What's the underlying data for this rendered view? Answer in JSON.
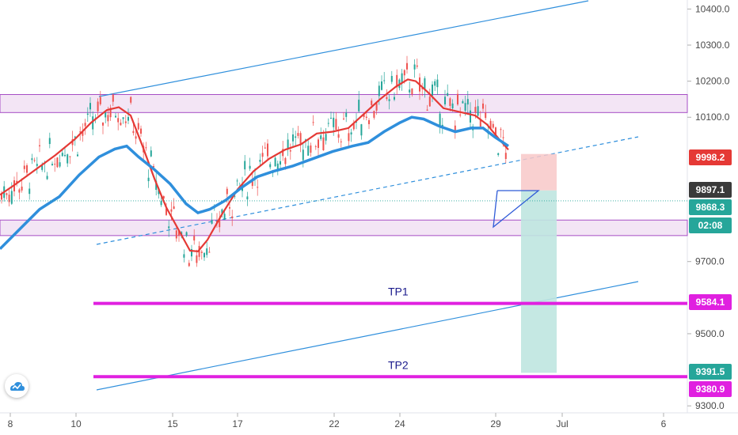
{
  "chart_data": {
    "type": "line",
    "symbol_interval": "candlestick price chart",
    "y_axis": {
      "ticks": [
        "10400.0",
        "10300.0",
        "10200.0",
        "10100.0",
        "9700.0",
        "9500.0",
        "9300.0"
      ],
      "ylim": [
        9285,
        10425
      ],
      "position": "right"
    },
    "x_axis": {
      "ticks": [
        "8",
        "10",
        "15",
        "17",
        "22",
        "24",
        "29",
        "Jul",
        "6"
      ]
    },
    "price_badges": [
      {
        "label": "9998.2",
        "color": "#e53935"
      },
      {
        "label": "9897.1",
        "color": "#3a3a3a"
      },
      {
        "label": "9868.3",
        "color": "#26a69a"
      },
      {
        "label": "02:08",
        "color": "#26a69a"
      },
      {
        "label": "9584.1",
        "color": "#e020e0"
      },
      {
        "label": "9391.5",
        "color": "#26a69a"
      },
      {
        "label": "9380.9",
        "color": "#e020e0"
      }
    ],
    "annotations": {
      "tp1_label": "TP1",
      "tp2_label": "TP2",
      "tp1_level": 9584.1,
      "tp2_level": 9380.9,
      "resistance_zone": [
        10113,
        10163
      ],
      "support_zone": [
        9772,
        9815
      ],
      "entry_level": 9897.1,
      "stop_level": 9998.2,
      "target_level": 9391.5,
      "current_price": 9868.3
    },
    "series": [
      {
        "color": "#e53935",
        "values": [
          [
            0,
            9885
          ],
          [
            20,
            9915
          ],
          [
            45,
            9955
          ],
          [
            70,
            9995
          ],
          [
            95,
            10040
          ],
          [
            115,
            10085
          ],
          [
            135,
            10120
          ],
          [
            150,
            10128
          ],
          [
            165,
            10105
          ],
          [
            180,
            10020
          ],
          [
            195,
            9930
          ],
          [
            210,
            9850
          ],
          [
            225,
            9790
          ],
          [
            240,
            9730
          ],
          [
            250,
            9728
          ],
          [
            262,
            9760
          ],
          [
            280,
            9830
          ],
          [
            300,
            9900
          ],
          [
            320,
            9950
          ],
          [
            340,
            9985
          ],
          [
            360,
            10010
          ],
          [
            380,
            10025
          ],
          [
            400,
            10055
          ],
          [
            420,
            10060
          ],
          [
            440,
            10070
          ],
          [
            460,
            10110
          ],
          [
            480,
            10150
          ],
          [
            500,
            10185
          ],
          [
            515,
            10205
          ],
          [
            525,
            10200
          ],
          [
            540,
            10170
          ],
          [
            560,
            10125
          ],
          [
            580,
            10115
          ],
          [
            600,
            10105
          ],
          [
            615,
            10080
          ],
          [
            630,
            10040
          ],
          [
            642,
            10010
          ]
        ]
      },
      {
        "color": "#2f8fdc",
        "values": [
          [
            0,
            9735
          ],
          [
            25,
            9790
          ],
          [
            50,
            9845
          ],
          [
            75,
            9880
          ],
          [
            100,
            9940
          ],
          [
            125,
            9990
          ],
          [
            145,
            10012
          ],
          [
            160,
            10020
          ],
          [
            175,
            9990
          ],
          [
            195,
            9955
          ],
          [
            215,
            9915
          ],
          [
            235,
            9860
          ],
          [
            250,
            9835
          ],
          [
            265,
            9845
          ],
          [
            285,
            9870
          ],
          [
            305,
            9905
          ],
          [
            325,
            9935
          ],
          [
            345,
            9950
          ],
          [
            370,
            9965
          ],
          [
            395,
            9985
          ],
          [
            420,
            10005
          ],
          [
            445,
            10020
          ],
          [
            465,
            10030
          ],
          [
            485,
            10060
          ],
          [
            505,
            10085
          ],
          [
            520,
            10100
          ],
          [
            535,
            10095
          ],
          [
            555,
            10075
          ],
          [
            575,
            10060
          ],
          [
            595,
            10070
          ],
          [
            610,
            10070
          ],
          [
            625,
            10045
          ],
          [
            642,
            10020
          ]
        ]
      }
    ]
  }
}
